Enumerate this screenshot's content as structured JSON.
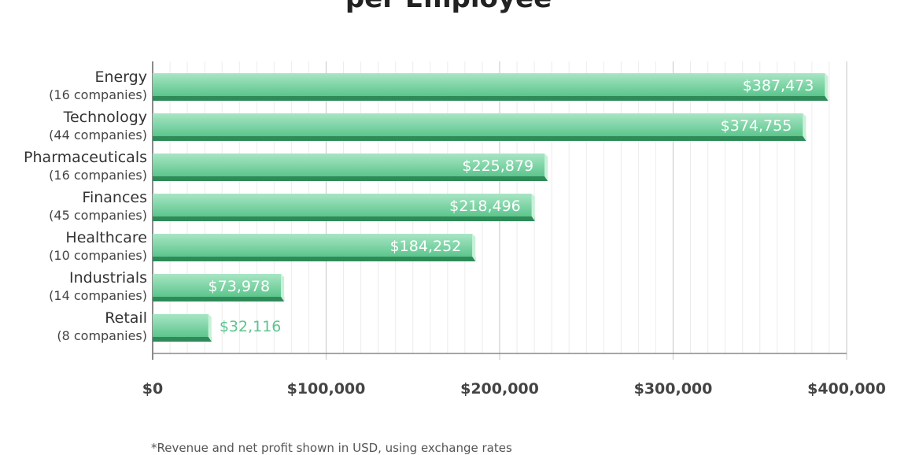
{
  "chart_data": {
    "type": "bar",
    "orientation": "horizontal",
    "title": "per Employee",
    "categories": [
      {
        "name": "Energy",
        "sub": "(16 companies)"
      },
      {
        "name": "Technology",
        "sub": "(44 companies)"
      },
      {
        "name": "Pharmaceuticals",
        "sub": "(16 companies)"
      },
      {
        "name": "Finances",
        "sub": "(45 companies)"
      },
      {
        "name": "Healthcare",
        "sub": "(10 companies)"
      },
      {
        "name": "Industrials",
        "sub": "(14 companies)"
      },
      {
        "name": "Retail",
        "sub": "(8 companies)"
      }
    ],
    "values": [
      387473,
      374755,
      225879,
      218496,
      184252,
      73978,
      32116
    ],
    "value_labels": [
      "$387,473",
      "$374,755",
      "$225,879",
      "$218,496",
      "$184,252",
      "$73,978",
      "$32,116"
    ],
    "xlim": [
      0,
      400000
    ],
    "xticks": [
      0,
      100000,
      200000,
      300000,
      400000
    ],
    "xtick_labels": [
      "$0",
      "$100,000",
      "$200,000",
      "$300,000",
      "$400,000"
    ],
    "grid": true,
    "colors": {
      "bar_top": "#a8e6c4",
      "bar_bottom": "#5cc58d",
      "bar_shadow": "#2e8b57",
      "bar_end": "#c6f2d8",
      "outside_label": "#5cc58d"
    }
  },
  "footnote": "*Revenue and net profit shown in USD, using exchange rates"
}
